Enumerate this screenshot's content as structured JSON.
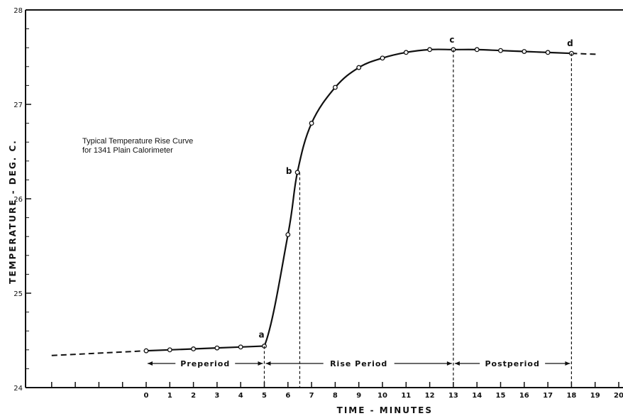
{
  "chart_data": {
    "type": "line",
    "ylabel": "TEMPERATURE - DEG. C.",
    "xlabel": "TIME - MINUTES",
    "annotation": [
      "Typical Temperature Rise Curve",
      "for 1341 Plain Calorimeter"
    ],
    "xlim": [
      -4,
      20
    ],
    "ylim": [
      24,
      28
    ],
    "x_ticks": [
      "0",
      "1",
      "2",
      "3",
      "4",
      "5",
      "6",
      "7",
      "8",
      "9",
      "10",
      "11",
      "12",
      "13",
      "14",
      "15",
      "16",
      "17",
      "18",
      "19",
      "20"
    ],
    "y_ticks": [
      "24",
      "25",
      "26",
      "27",
      "28"
    ],
    "series": [
      {
        "x": [
          0,
          1,
          2,
          3,
          4,
          5,
          6,
          6.4,
          7,
          8,
          9,
          10,
          11,
          12,
          13,
          14,
          15,
          16,
          17,
          18
        ],
        "y": [
          24.39,
          24.4,
          24.41,
          24.42,
          24.43,
          24.44,
          25.62,
          26.28,
          26.8,
          27.18,
          27.39,
          27.49,
          27.55,
          27.58,
          27.58,
          27.58,
          27.57,
          27.56,
          27.55,
          27.54
        ]
      }
    ],
    "extrapolation_before": {
      "x": [
        -4,
        0
      ],
      "y": [
        24.34,
        24.39
      ]
    },
    "extrapolation_after": {
      "x": [
        18,
        19.1
      ],
      "y": [
        27.54,
        27.53
      ]
    },
    "marked_points": [
      {
        "label": "a",
        "x": 5,
        "y": 24.44
      },
      {
        "label": "b",
        "x": 6.4,
        "y": 26.28
      },
      {
        "label": "c",
        "x": 13,
        "y": 27.58
      },
      {
        "label": "d",
        "x": 18,
        "y": 27.54
      }
    ],
    "periods": [
      {
        "label": "Preperiod",
        "from": 0,
        "to": 5
      },
      {
        "label": "Rise Period",
        "from": 5,
        "to": 13
      },
      {
        "label": "Postperiod",
        "from": 13,
        "to": 18
      }
    ],
    "vertical_markers": [
      5,
      6.5,
      13,
      18
    ]
  }
}
